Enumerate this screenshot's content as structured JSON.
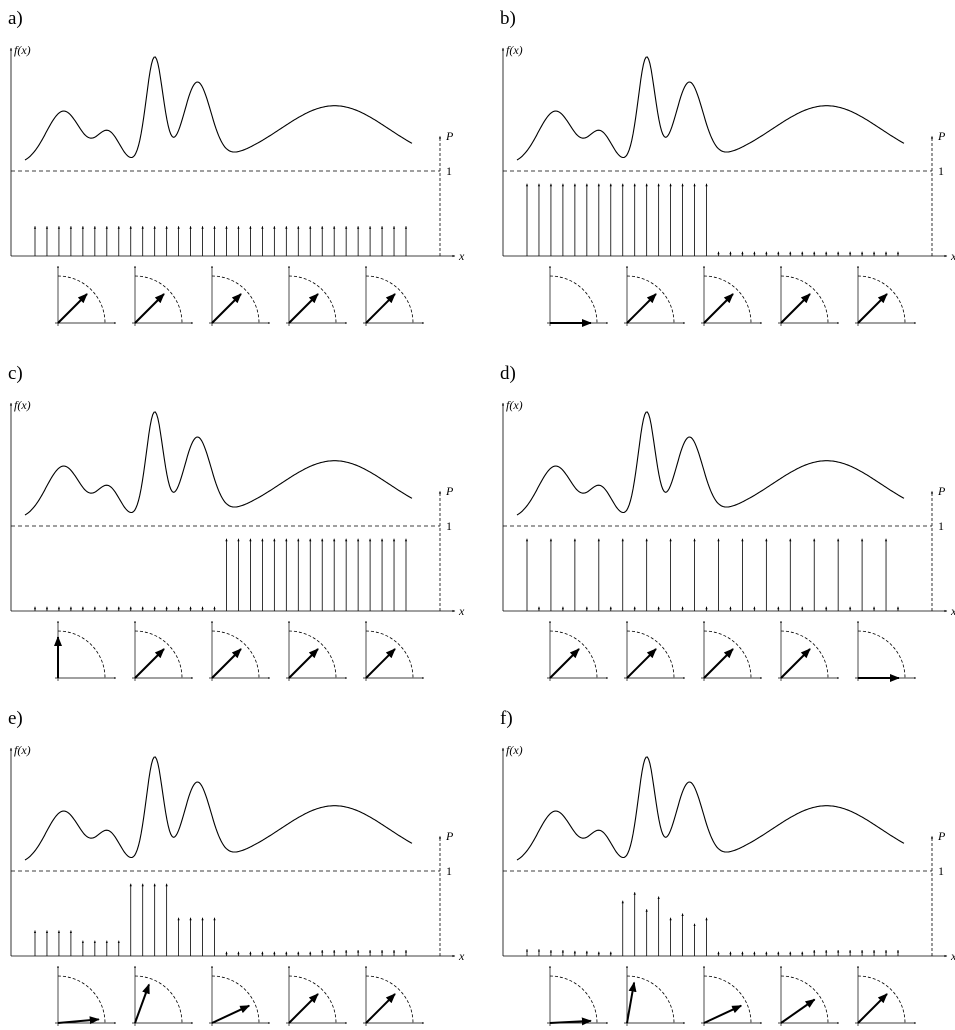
{
  "panels": [
    {
      "label": "a)",
      "fx_label": "f(x)",
      "p_label": "P",
      "one_label": "1",
      "x_label": "x",
      "bars": [
        0.35,
        0.35,
        0.35,
        0.35,
        0.35,
        0.35,
        0.35,
        0.35,
        0.35,
        0.35,
        0.35,
        0.35,
        0.35,
        0.35,
        0.35,
        0.35,
        0.35,
        0.35,
        0.35,
        0.35,
        0.35,
        0.35,
        0.35,
        0.35,
        0.35,
        0.35,
        0.35,
        0.35,
        0.35,
        0.35,
        0.35,
        0.35
      ],
      "qubits": [
        45,
        45,
        45,
        45,
        45
      ]
    },
    {
      "label": "b)",
      "fx_label": "f(x)",
      "p_label": "P",
      "one_label": "1",
      "x_label": "x",
      "bars": [
        0.85,
        0.85,
        0.85,
        0.85,
        0.85,
        0.85,
        0.85,
        0.85,
        0.85,
        0.85,
        0.85,
        0.85,
        0.85,
        0.85,
        0.85,
        0.85,
        0.05,
        0.05,
        0.05,
        0.05,
        0.05,
        0.05,
        0.05,
        0.05,
        0.05,
        0.05,
        0.05,
        0.05,
        0.05,
        0.05,
        0.05,
        0.05
      ],
      "qubits": [
        0,
        45,
        45,
        45,
        45
      ]
    },
    {
      "label": "c)",
      "fx_label": "f(x)",
      "p_label": "P",
      "one_label": "1",
      "x_label": "x",
      "bars": [
        0.05,
        0.05,
        0.05,
        0.05,
        0.05,
        0.05,
        0.05,
        0.05,
        0.05,
        0.05,
        0.05,
        0.05,
        0.05,
        0.05,
        0.05,
        0.05,
        0.85,
        0.85,
        0.85,
        0.85,
        0.85,
        0.85,
        0.85,
        0.85,
        0.85,
        0.85,
        0.85,
        0.85,
        0.85,
        0.85,
        0.85,
        0.85
      ],
      "qubits": [
        90,
        45,
        45,
        45,
        45
      ]
    },
    {
      "label": "d)",
      "fx_label": "f(x)",
      "p_label": "P",
      "one_label": "1",
      "x_label": "x",
      "bars": [
        0.85,
        0.05,
        0.85,
        0.05,
        0.85,
        0.05,
        0.85,
        0.05,
        0.85,
        0.05,
        0.85,
        0.05,
        0.85,
        0.05,
        0.85,
        0.05,
        0.85,
        0.05,
        0.85,
        0.05,
        0.85,
        0.05,
        0.85,
        0.05,
        0.85,
        0.05,
        0.85,
        0.05,
        0.85,
        0.05,
        0.85,
        0.05
      ],
      "qubits": [
        45,
        45,
        45,
        45,
        0
      ]
    },
    {
      "label": "e)",
      "fx_label": "f(x)",
      "p_label": "P",
      "one_label": "1",
      "x_label": "x",
      "bars": [
        0.3,
        0.3,
        0.3,
        0.3,
        0.18,
        0.18,
        0.18,
        0.18,
        0.85,
        0.85,
        0.85,
        0.85,
        0.45,
        0.45,
        0.45,
        0.45,
        0.05,
        0.05,
        0.05,
        0.05,
        0.05,
        0.05,
        0.05,
        0.05,
        0.07,
        0.07,
        0.07,
        0.07,
        0.07,
        0.07,
        0.07,
        0.07
      ],
      "qubits": [
        5,
        70,
        25,
        45,
        45
      ]
    },
    {
      "label": "f)",
      "fx_label": "f(x)",
      "p_label": "P",
      "one_label": "1",
      "x_label": "x",
      "bars": [
        0.08,
        0.08,
        0.07,
        0.07,
        0.06,
        0.06,
        0.05,
        0.05,
        0.65,
        0.75,
        0.55,
        0.7,
        0.45,
        0.5,
        0.38,
        0.45,
        0.05,
        0.05,
        0.05,
        0.05,
        0.05,
        0.05,
        0.05,
        0.05,
        0.07,
        0.07,
        0.07,
        0.07,
        0.07,
        0.07,
        0.07,
        0.07
      ],
      "qubits": [
        3,
        80,
        25,
        35,
        45
      ]
    }
  ],
  "curve_peaks": [
    {
      "x": 0.1,
      "amp": 0.5,
      "w": 0.045
    },
    {
      "x": 0.215,
      "amp": 0.3,
      "w": 0.03
    },
    {
      "x": 0.335,
      "amp": 1.0,
      "w": 0.022
    },
    {
      "x": 0.445,
      "amp": 0.75,
      "w": 0.035
    },
    {
      "x": 0.8,
      "amp": 0.55,
      "w": 0.14
    }
  ]
}
